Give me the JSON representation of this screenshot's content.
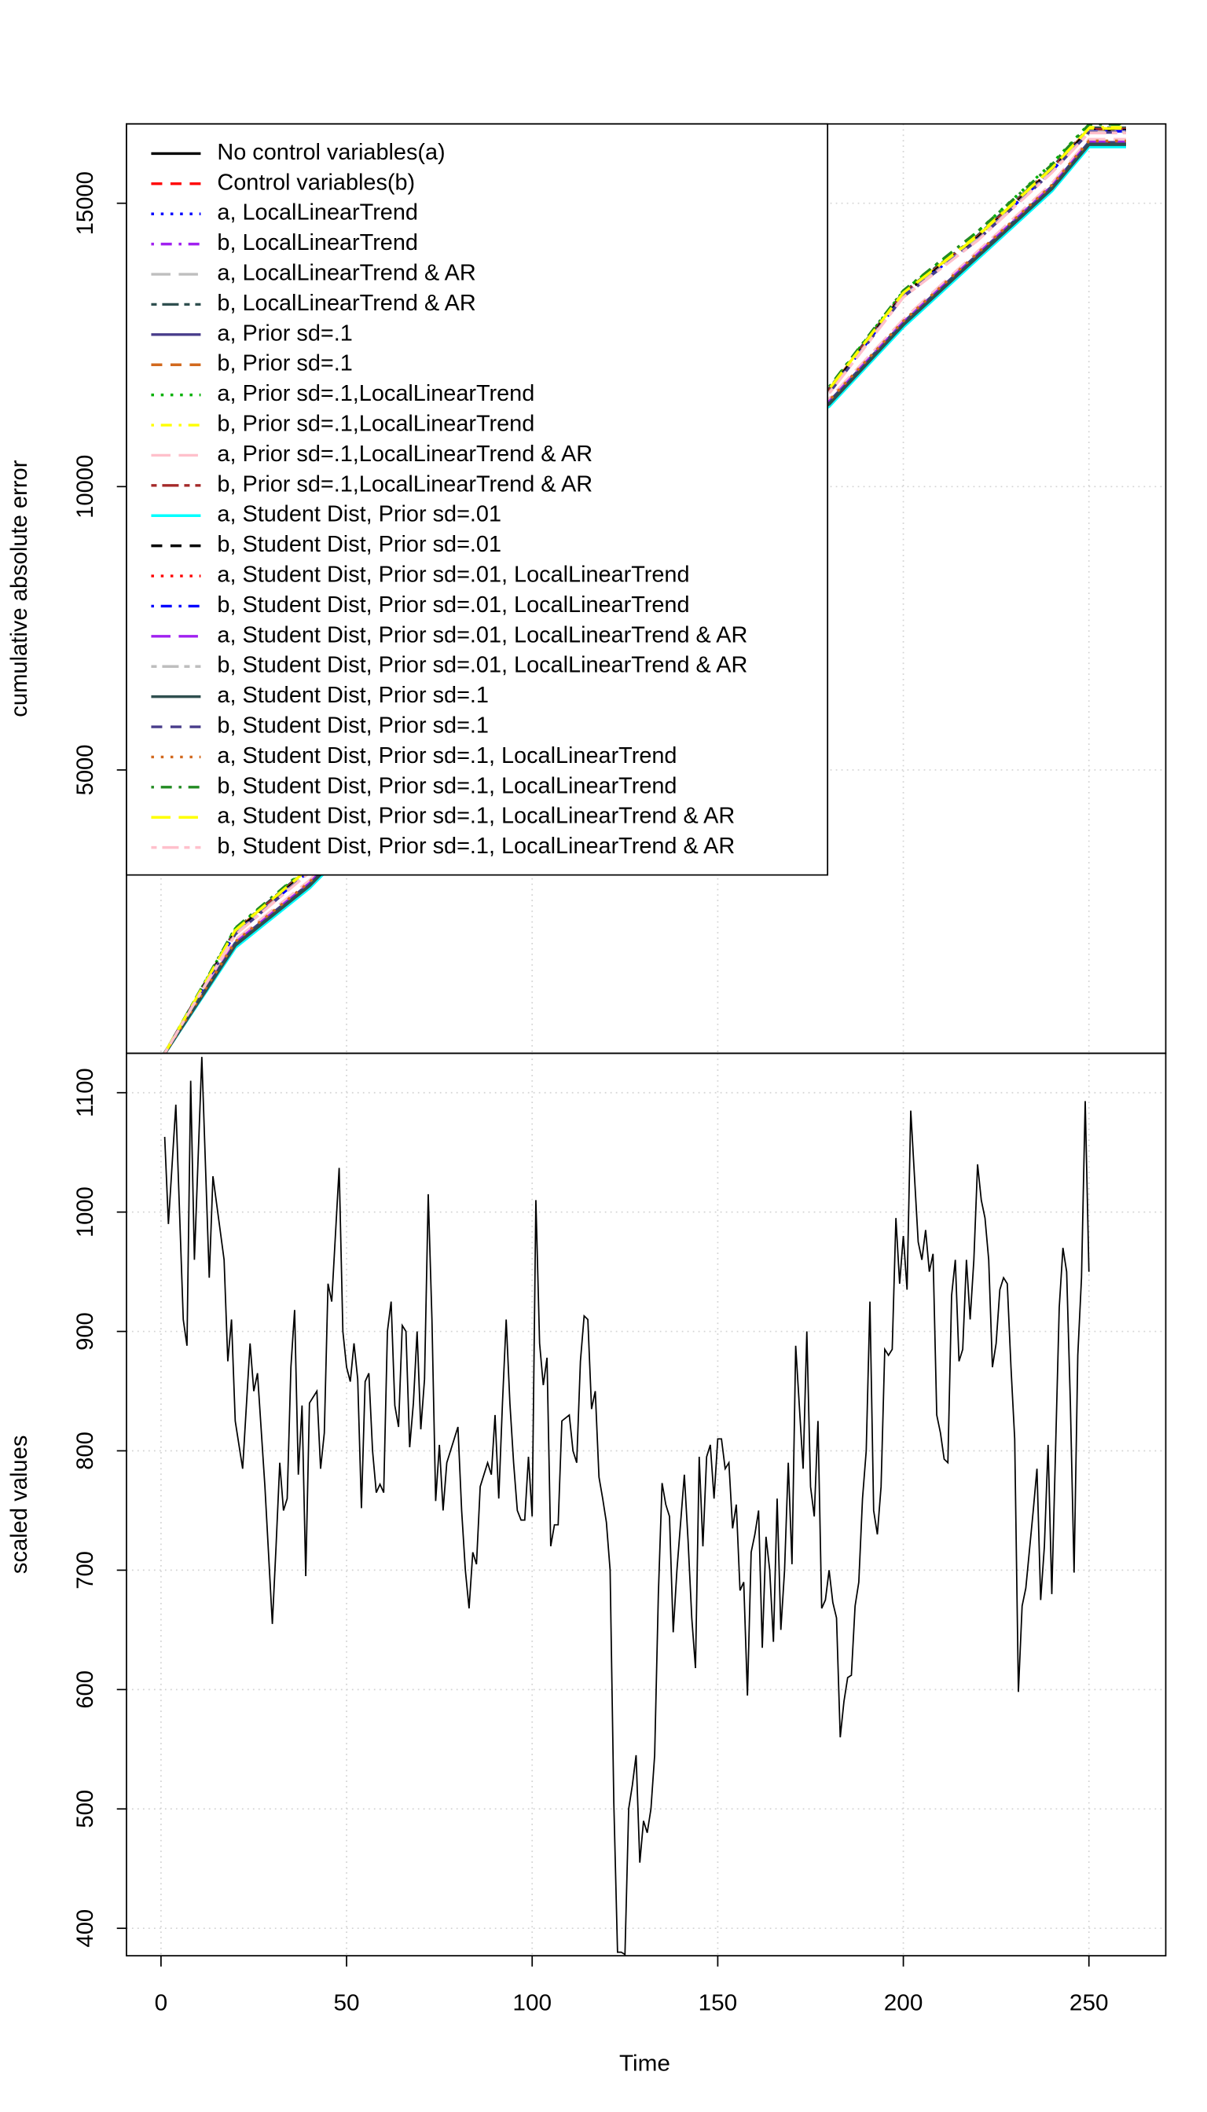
{
  "chart_data": [
    {
      "type": "line",
      "y_label": "cumulative absolute error",
      "grid": true,
      "legend": "top-left",
      "x": [
        1,
        20,
        40,
        60,
        80,
        100,
        120,
        140,
        160,
        180,
        200,
        220,
        240,
        250,
        260
      ],
      "xlim": [
        -9.3,
        270.7
      ],
      "xticks": [
        0,
        50,
        100,
        150,
        200,
        250
      ],
      "ylim": [
        0,
        16400
      ],
      "yticks": [
        5000,
        10000,
        15000
      ],
      "series": [
        {
          "name": "No control variables(a)",
          "color": "#000000",
          "linestyle": "solid",
          "values": [
            0,
            1900,
            2950,
            4300,
            5700,
            7100,
            8500,
            9800,
            10700,
            11450,
            12850,
            14050,
            15250,
            16030,
            16030
          ]
        },
        {
          "name": "Control variables(b)",
          "color": "#ff0000",
          "linestyle": "dashed",
          "values": [
            0,
            2150,
            3250,
            4650,
            6050,
            7450,
            8850,
            10100,
            11000,
            11700,
            13400,
            14400,
            15600,
            16300,
            16300
          ]
        },
        {
          "name": "a, LocalLinearTrend",
          "color": "#0000ff",
          "linestyle": "dotted",
          "values": [
            0,
            1920,
            2970,
            4320,
            5720,
            7120,
            8520,
            9820,
            10720,
            11470,
            12870,
            14070,
            15270,
            16050,
            16050
          ]
        },
        {
          "name": "b, LocalLinearTrend",
          "color": "#a020f0",
          "linestyle": "dotdash",
          "values": [
            0,
            2130,
            3230,
            4630,
            6030,
            7430,
            8830,
            10080,
            10980,
            11680,
            13380,
            14380,
            15580,
            16280,
            16280
          ]
        },
        {
          "name": "a, LocalLinearTrend & AR",
          "color": "#bebebe",
          "linestyle": "longdash",
          "values": [
            0,
            1960,
            3010,
            4360,
            5760,
            7160,
            8560,
            9860,
            10760,
            11510,
            12910,
            14110,
            15310,
            16090,
            16090
          ]
        },
        {
          "name": "b, LocalLinearTrend & AR",
          "color": "#2f4f4f",
          "linestyle": "twodash",
          "values": [
            0,
            2180,
            3280,
            4680,
            6080,
            7480,
            8880,
            10130,
            11030,
            11730,
            13430,
            14430,
            15630,
            16330,
            16330
          ]
        },
        {
          "name": "a, Prior sd=.1",
          "color": "#483d8b",
          "linestyle": "solid",
          "values": [
            0,
            1940,
            2990,
            4340,
            5740,
            7140,
            8540,
            9840,
            10740,
            11490,
            12890,
            14090,
            15290,
            16070,
            16070
          ]
        },
        {
          "name": "b, Prior sd=.1",
          "color": "#d2691e",
          "linestyle": "dashed",
          "values": [
            0,
            2160,
            3260,
            4660,
            6060,
            7460,
            8860,
            10110,
            11010,
            11710,
            13410,
            14410,
            15610,
            16310,
            16310
          ]
        },
        {
          "name": "a, Prior sd=.1,LocalLinearTrend",
          "color": "#00b000",
          "linestyle": "dotted",
          "values": [
            0,
            2200,
            3300,
            4700,
            6100,
            7500,
            8900,
            10150,
            11050,
            11750,
            13450,
            14500,
            15700,
            16400,
            16400
          ]
        },
        {
          "name": "b, Prior sd=.1,LocalLinearTrend",
          "color": "#ffff00",
          "linestyle": "dotdash",
          "values": [
            0,
            2190,
            3290,
            4690,
            6090,
            7490,
            8890,
            10140,
            11040,
            11740,
            13440,
            14440,
            15640,
            16340,
            16340
          ]
        },
        {
          "name": "a, Prior sd=.1,LocalLinearTrend & AR",
          "color": "#ffc0cb",
          "linestyle": "longdash",
          "values": [
            0,
            2000,
            3050,
            4400,
            5800,
            7200,
            8600,
            9900,
            10800,
            11550,
            12950,
            14150,
            15350,
            16130,
            16130
          ]
        },
        {
          "name": "b, Prior sd=.1,LocalLinearTrend & AR",
          "color": "#a52a2a",
          "linestyle": "twodash",
          "values": [
            0,
            2155,
            3255,
            4655,
            6055,
            7455,
            8855,
            10105,
            11005,
            11705,
            13405,
            14405,
            15605,
            16305,
            16305
          ]
        },
        {
          "name": "a, Student Dist, Prior sd=.01",
          "color": "#00ffff",
          "linestyle": "solid",
          "values": [
            0,
            1870,
            2920,
            4270,
            5670,
            7070,
            8470,
            9770,
            10670,
            11420,
            12820,
            14020,
            15220,
            16000,
            16000
          ]
        },
        {
          "name": "b, Student Dist, Prior sd=.01",
          "color": "#000000",
          "linestyle": "dashed",
          "values": [
            0,
            2140,
            3240,
            4640,
            6040,
            7440,
            8840,
            10090,
            10990,
            11690,
            13390,
            14390,
            15590,
            16290,
            16290
          ]
        },
        {
          "name": "a, Student Dist, Prior sd=.01, LocalLinearTrend",
          "color": "#ff0000",
          "linestyle": "dotted",
          "values": [
            0,
            1930,
            2980,
            4330,
            5730,
            7130,
            8530,
            9830,
            10730,
            11480,
            12880,
            14080,
            15280,
            16060,
            16060
          ]
        },
        {
          "name": "b, Student Dist, Prior sd=.01, LocalLinearTrend",
          "color": "#0000ff",
          "linestyle": "dotdash",
          "values": [
            0,
            2120,
            3220,
            4620,
            6020,
            7420,
            8820,
            10070,
            10970,
            11670,
            13370,
            14370,
            15570,
            16270,
            16270
          ]
        },
        {
          "name": "a, Student Dist, Prior sd=.01, LocalLinearTrend & AR",
          "color": "#a020f0",
          "linestyle": "longdash",
          "values": [
            0,
            1950,
            3000,
            4350,
            5750,
            7150,
            8550,
            9850,
            10750,
            11500,
            12900,
            14100,
            15300,
            16080,
            16080
          ]
        },
        {
          "name": "b, Student Dist, Prior sd=.01, LocalLinearTrend & AR",
          "color": "#bebebe",
          "linestyle": "twodash",
          "values": [
            0,
            2110,
            3210,
            4610,
            6010,
            7410,
            8810,
            10060,
            10960,
            11660,
            13360,
            14360,
            15560,
            16260,
            16260
          ]
        },
        {
          "name": "a, Student Dist, Prior sd=.1",
          "color": "#2f4f4f",
          "linestyle": "solid",
          "values": [
            0,
            1910,
            2960,
            4310,
            5710,
            7110,
            8510,
            9810,
            10710,
            11460,
            12860,
            14060,
            15260,
            16040,
            16040
          ]
        },
        {
          "name": "b, Student Dist, Prior sd=.1",
          "color": "#483d8b",
          "linestyle": "dashed",
          "values": [
            0,
            2100,
            3200,
            4600,
            6000,
            7400,
            8800,
            10050,
            10950,
            11650,
            13350,
            14350,
            15550,
            16250,
            16250
          ]
        },
        {
          "name": "a, Student Dist, Prior sd=.1, LocalLinearTrend",
          "color": "#d2691e",
          "linestyle": "dotted",
          "values": [
            0,
            1970,
            3020,
            4370,
            5770,
            7170,
            8570,
            9870,
            10770,
            11520,
            12920,
            14120,
            15320,
            16100,
            16100
          ]
        },
        {
          "name": "b, Student Dist, Prior sd=.1, LocalLinearTrend",
          "color": "#228b22",
          "linestyle": "dotdash",
          "values": [
            0,
            2210,
            3310,
            4710,
            6110,
            7510,
            8910,
            10160,
            11060,
            11760,
            13460,
            14500,
            15680,
            16390,
            16390
          ]
        },
        {
          "name": "a, Student Dist, Prior sd=.1, LocalLinearTrend & AR",
          "color": "#ffff00",
          "linestyle": "longdash",
          "values": [
            0,
            2170,
            3270,
            4670,
            6070,
            7470,
            8870,
            10120,
            11020,
            11720,
            13420,
            14420,
            15620,
            16320,
            16320
          ]
        },
        {
          "name": "b, Student Dist, Prior sd=.1, LocalLinearTrend & AR",
          "color": "#ffc0cb",
          "linestyle": "twodash",
          "values": [
            0,
            2090,
            3190,
            4590,
            5990,
            7390,
            8790,
            10040,
            10940,
            11640,
            13340,
            14340,
            15540,
            16240,
            16240
          ]
        }
      ]
    },
    {
      "type": "line",
      "x_label": "Time",
      "y_label": "scaled values",
      "grid": true,
      "color": "#000000",
      "xlim": [
        -9.3,
        270.7
      ],
      "xticks": [
        0,
        50,
        100,
        150,
        200,
        250
      ],
      "ylim": [
        377,
        1133
      ],
      "yticks": [
        400,
        500,
        600,
        700,
        800,
        900,
        1000,
        1100
      ],
      "x": [
        1,
        2,
        4,
        6,
        7,
        8,
        9,
        11,
        13,
        14,
        17,
        18,
        19,
        20,
        22,
        24,
        25,
        26,
        28,
        30,
        31,
        32,
        33,
        34,
        35,
        36,
        37,
        38,
        39,
        40,
        42,
        43,
        44,
        45,
        46,
        48,
        49,
        50,
        51,
        52,
        53,
        54,
        55,
        56,
        57,
        58,
        59,
        60,
        61,
        62,
        63,
        64,
        65,
        66,
        67,
        68,
        69,
        70,
        71,
        72,
        73,
        74,
        75,
        76,
        77,
        80,
        81,
        82,
        83,
        84,
        85,
        86,
        88,
        89,
        90,
        91,
        92,
        93,
        94,
        95,
        96,
        97,
        98,
        99,
        100,
        101,
        102,
        103,
        104,
        105,
        106,
        107,
        108,
        110,
        111,
        112,
        113,
        114,
        115,
        116,
        117,
        118,
        119,
        120,
        121,
        122,
        123,
        124,
        125,
        126,
        127,
        128,
        129,
        130,
        131,
        132,
        133,
        134,
        135,
        136,
        137,
        138,
        139,
        141,
        142,
        143,
        144,
        145,
        146,
        147,
        148,
        149,
        150,
        151,
        152,
        153,
        154,
        155,
        156,
        157,
        158,
        159,
        160,
        161,
        162,
        163,
        164,
        165,
        166,
        167,
        168,
        169,
        170,
        171,
        173,
        174,
        175,
        176,
        177,
        178,
        179,
        180,
        181,
        182,
        183,
        184,
        185,
        186,
        187,
        188,
        189,
        190,
        191,
        192,
        193,
        194,
        195,
        196,
        197,
        198,
        199,
        200,
        201,
        202,
        204,
        205,
        206,
        207,
        208,
        209,
        210,
        211,
        212,
        213,
        214,
        215,
        216,
        217,
        218,
        219,
        220,
        221,
        222,
        223,
        224,
        225,
        226,
        227,
        228,
        229,
        230,
        231,
        232,
        233,
        235,
        236,
        237,
        238,
        239,
        240,
        241,
        242,
        243,
        244,
        245,
        246,
        247,
        248,
        249,
        250
      ],
      "values": [
        1063,
        990,
        1090,
        910,
        888,
        1110,
        960,
        1130,
        945,
        1030,
        960,
        875,
        910,
        825,
        785,
        890,
        850,
        865,
        770,
        655,
        720,
        790,
        750,
        760,
        870,
        918,
        780,
        838,
        695,
        840,
        850,
        785,
        815,
        940,
        925,
        1037,
        900,
        870,
        858,
        890,
        860,
        752,
        858,
        865,
        800,
        765,
        772,
        765,
        900,
        925,
        838,
        820,
        905,
        900,
        803,
        840,
        900,
        818,
        860,
        1015,
        910,
        758,
        805,
        750,
        790,
        820,
        750,
        700,
        668,
        715,
        705,
        770,
        790,
        780,
        830,
        760,
        840,
        910,
        840,
        790,
        750,
        742,
        742,
        795,
        745,
        1010,
        890,
        855,
        878,
        720,
        738,
        738,
        825,
        830,
        800,
        790,
        875,
        913,
        910,
        835,
        850,
        778,
        760,
        740,
        700,
        505,
        380,
        380,
        378,
        500,
        520,
        545,
        455,
        490,
        480,
        500,
        545,
        680,
        773,
        755,
        745,
        648,
        700,
        780,
        725,
        660,
        618,
        795,
        720,
        795,
        805,
        760,
        810,
        810,
        785,
        790,
        735,
        755,
        683,
        690,
        595,
        715,
        730,
        750,
        635,
        728,
        700,
        640,
        760,
        650,
        700,
        790,
        705,
        888,
        785,
        900,
        770,
        745,
        825,
        668,
        675,
        700,
        673,
        660,
        560,
        590,
        610,
        612,
        670,
        690,
        760,
        800,
        925,
        750,
        730,
        770,
        885,
        880,
        885,
        995,
        940,
        980,
        935,
        1085,
        975,
        960,
        985,
        950,
        965,
        830,
        815,
        793,
        790,
        930,
        960,
        875,
        885,
        960,
        910,
        960,
        1040,
        1010,
        995,
        960,
        870,
        890,
        935,
        945,
        940,
        870,
        810,
        598,
        670,
        685,
        750,
        785,
        675,
        720,
        805,
        680,
        800,
        920,
        970,
        950,
        840,
        698,
        880,
        945,
        1093,
        950
      ]
    }
  ]
}
